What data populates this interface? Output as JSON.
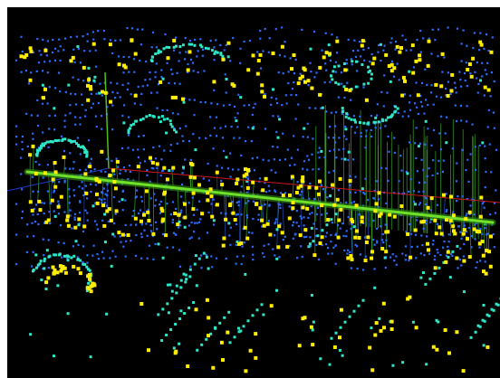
{
  "viewport": {
    "background": "#000000",
    "page_background": "#ffffff"
  },
  "colors": {
    "blue_points": "#2a6bff",
    "cyan_points": "#2ee6c8",
    "yellow_points": "#ffee00",
    "green_stems": "#3fbf2a",
    "blue_stems": "#2b58d8",
    "red_axis": "#d01818",
    "green_axis": "#4ec01e",
    "blue_axis": "#1a3cd0"
  },
  "scene": {
    "description_icons": [
      "3d-axes-icon"
    ]
  }
}
